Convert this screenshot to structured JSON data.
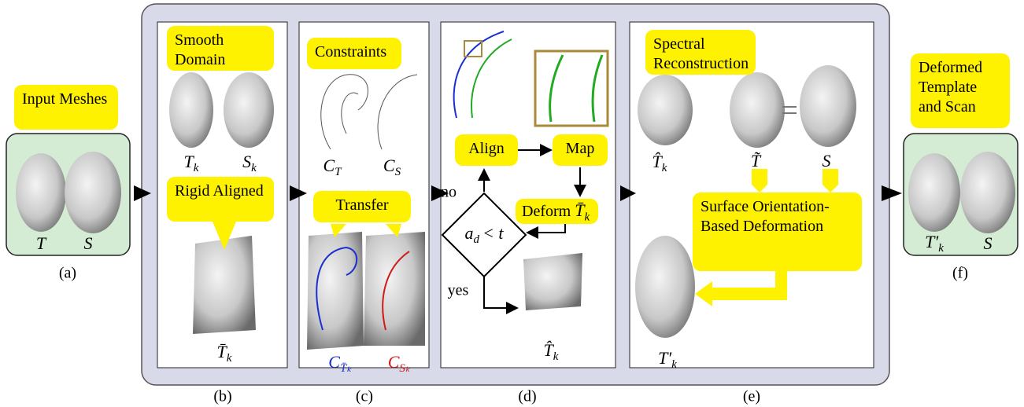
{
  "a": {
    "title": "Input Meshes",
    "symbols": [
      {
        "base": "T"
      },
      {
        "base": "S"
      }
    ],
    "caption": "(a)"
  },
  "b": {
    "title": "Smooth Domain",
    "symbols": [
      {
        "base": "T",
        "sub": "k"
      },
      {
        "base": "S",
        "sub": "k"
      },
      {
        "base": "T̄",
        "sub": "k"
      }
    ],
    "step": "Rigid Aligned",
    "caption": "(b)"
  },
  "c": {
    "title": "Constraints",
    "symbols": [
      {
        "base": "C",
        "sub": "T"
      },
      {
        "base": "C",
        "sub": "S"
      },
      {
        "base": "C",
        "sub": "T̄ₖ"
      },
      {
        "base": "C",
        "sub": "Sₖ"
      }
    ],
    "step": "Transfer",
    "caption": "(c)"
  },
  "d": {
    "align": "Align",
    "map": "Map",
    "deform": {
      "text": "Deform",
      "base": "T̄",
      "sub": "k"
    },
    "condition": {
      "base": "a",
      "sub": "d",
      "tail": "< t"
    },
    "no": "no",
    "yes": "yes",
    "symbols": [
      {
        "base": "T̂",
        "sub": "k"
      }
    ],
    "caption": "(d)"
  },
  "e": {
    "title": "Spectral Reconstruction",
    "symbols": [
      {
        "base": "T̂",
        "sub": "k"
      },
      {
        "base": "T̃"
      },
      {
        "base": "S"
      },
      {
        "base": "T′",
        "sub": "k"
      }
    ],
    "step": "Surface Orientation-Based Deformation",
    "caption": "(e)"
  },
  "f": {
    "title": "Deformed Template and Scan",
    "symbols": [
      {
        "base": "T′",
        "sub": "k"
      },
      {
        "base": "S"
      }
    ],
    "caption": "(f)"
  }
}
